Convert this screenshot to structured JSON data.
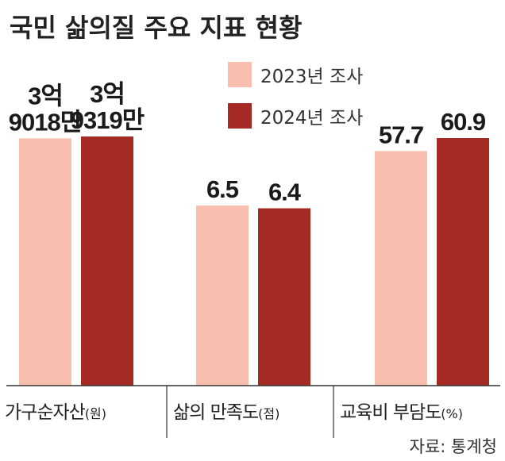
{
  "chart_data": {
    "type": "bar",
    "title": "국민 삶의질 주요 지표 현황",
    "series": [
      {
        "name": "2023년 조사",
        "color": "#f8bfae"
      },
      {
        "name": "2024년 조사",
        "color": "#a52a24"
      }
    ],
    "categories": [
      {
        "label": "가구순자산",
        "unit": "(원)",
        "values": [
          390180000,
          393190000
        ],
        "value_labels": [
          [
            "3억",
            "9018만"
          ],
          [
            "3억",
            "9319만"
          ]
        ]
      },
      {
        "label": "삶의 만족도",
        "unit": "(점)",
        "values": [
          6.5,
          6.4
        ],
        "value_labels": [
          [
            "6.5"
          ],
          [
            "6.4"
          ]
        ]
      },
      {
        "label": "교육비 부담도",
        "unit": "(%)",
        "values": [
          57.7,
          60.9
        ],
        "value_labels": [
          [
            "57.7"
          ],
          [
            "60.9"
          ]
        ]
      }
    ],
    "source": "자료: 통계청",
    "grid": false,
    "legend_placement": "top-center"
  }
}
